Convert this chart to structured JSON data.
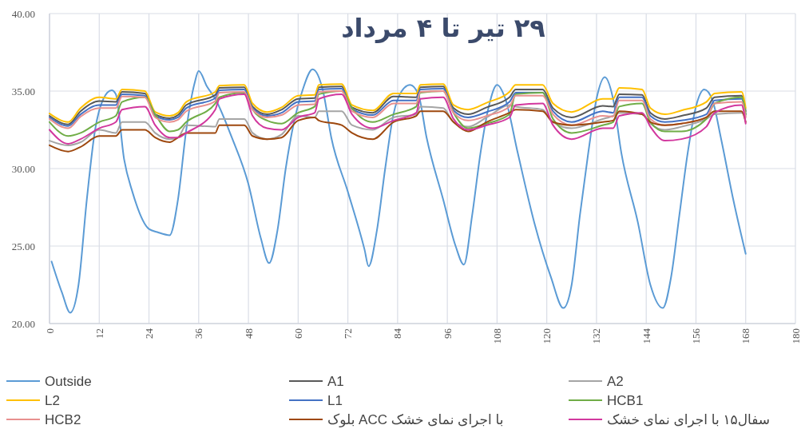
{
  "chart_data": {
    "type": "line",
    "title": "۲۹ تیر تا ۴ مرداد",
    "x": [
      0,
      4.5,
      7.5,
      12,
      16,
      17.5,
      23,
      25.5,
      29,
      31,
      33,
      40,
      41,
      47,
      49,
      52.5,
      56,
      60,
      64,
      65,
      70.5,
      73,
      78,
      83,
      88.5,
      89.5,
      95,
      97.5,
      101,
      105.5,
      111,
      112.5,
      119,
      121.5,
      126,
      133.5,
      136,
      137.5,
      143,
      145,
      148.5,
      152.5,
      158.5,
      160.5,
      167,
      168
    ],
    "xlim": [
      0,
      180
    ],
    "xticks": [
      0,
      12,
      24,
      36,
      48,
      60,
      72,
      84,
      96,
      108,
      120,
      132,
      144,
      156,
      168,
      180
    ],
    "ylim": [
      20,
      40
    ],
    "yticks": [
      {
        "value": 20,
        "label": "20.00"
      },
      {
        "value": 25,
        "label": "25.00"
      },
      {
        "value": 30,
        "label": "30.00"
      },
      {
        "value": 35,
        "label": "35.00"
      },
      {
        "value": 40,
        "label": "40.00"
      }
    ],
    "grid": true,
    "legend": "bottom",
    "line_style": "solid",
    "series": [
      {
        "name": "Outside",
        "color": "#5b9bd5",
        "x": [
          0.5,
          3,
          5,
          7,
          9,
          11,
          13,
          15,
          16,
          18,
          20,
          24,
          26,
          29,
          31,
          33,
          35,
          36,
          38,
          40,
          44,
          48,
          51,
          53,
          55,
          57,
          59,
          61,
          63.5,
          66,
          68,
          72,
          76,
          77,
          79,
          81,
          83,
          85,
          87,
          89,
          91,
          95,
          98,
          100,
          102,
          104,
          106,
          108,
          110,
          113,
          117,
          121,
          124,
          126,
          128,
          130,
          132,
          134,
          136,
          138,
          142,
          145,
          148,
          150,
          152,
          154,
          156,
          158,
          160,
          162,
          165,
          168
        ],
        "values": [
          24.0,
          22.0,
          20.7,
          22.5,
          28.0,
          32.5,
          34.5,
          35.05,
          34.8,
          30.6,
          28.5,
          26.1,
          25.9,
          25.7,
          28.0,
          32.5,
          35.5,
          36.3,
          35.3,
          34.5,
          32.0,
          29.0,
          25.5,
          23.9,
          26.0,
          30.0,
          33.0,
          35.0,
          36.4,
          35.0,
          32.0,
          28.5,
          24.8,
          23.7,
          26.0,
          30.0,
          33.5,
          35.0,
          35.4,
          34.8,
          32.0,
          28.0,
          25.0,
          23.8,
          27.0,
          31.0,
          34.0,
          35.4,
          34.5,
          31.0,
          26.5,
          23.0,
          21.0,
          22.5,
          27.0,
          31.0,
          34.5,
          35.9,
          34.5,
          31.0,
          26.5,
          22.5,
          21.0,
          23.0,
          27.0,
          31.0,
          34.0,
          35.1,
          34.4,
          32.0,
          28.0,
          24.5
        ]
      },
      {
        "name": "A1",
        "color": "#595959",
        "values": [
          33.4,
          32.85,
          33.7,
          34.35,
          34.3,
          34.95,
          34.85,
          33.5,
          33.25,
          33.45,
          34.1,
          34.75,
          35.2,
          35.25,
          34.0,
          33.5,
          33.8,
          34.5,
          34.55,
          35.25,
          35.3,
          33.95,
          33.6,
          34.65,
          34.6,
          35.25,
          35.3,
          33.9,
          33.5,
          33.95,
          34.6,
          35.1,
          35.1,
          33.9,
          33.3,
          34.05,
          34.0,
          34.8,
          34.75,
          33.6,
          33.2,
          33.4,
          33.9,
          34.6,
          34.7,
          33.7
        ]
      },
      {
        "name": "A2",
        "color": "#a5a5a5",
        "values": [
          31.8,
          31.5,
          31.7,
          32.5,
          32.3,
          33.0,
          33.0,
          32.3,
          31.9,
          32.0,
          32.8,
          32.7,
          33.2,
          33.2,
          32.3,
          31.9,
          32.2,
          33.4,
          33.3,
          33.7,
          33.7,
          32.8,
          32.5,
          33.3,
          33.5,
          34.0,
          33.9,
          33.0,
          32.7,
          33.3,
          34.1,
          34.0,
          33.8,
          33.0,
          32.6,
          33.2,
          33.4,
          33.6,
          33.5,
          32.9,
          32.5,
          32.7,
          33.2,
          33.5,
          33.6,
          33.4
        ]
      },
      {
        "name": "L2",
        "color": "#ffc000",
        "values": [
          33.55,
          33.0,
          33.9,
          34.6,
          34.5,
          35.1,
          35.0,
          33.65,
          33.4,
          33.6,
          34.3,
          34.95,
          35.35,
          35.4,
          34.2,
          33.65,
          33.95,
          34.7,
          34.75,
          35.4,
          35.45,
          34.1,
          33.75,
          34.85,
          34.85,
          35.4,
          35.45,
          34.1,
          33.8,
          34.25,
          34.95,
          35.4,
          35.4,
          34.2,
          33.65,
          34.5,
          34.5,
          35.2,
          35.1,
          33.9,
          33.5,
          33.75,
          34.3,
          34.85,
          34.95,
          33.9
        ]
      },
      {
        "name": "L1",
        "color": "#4472c4",
        "values": [
          33.3,
          32.75,
          33.5,
          34.1,
          34.1,
          34.8,
          34.7,
          33.4,
          33.15,
          33.3,
          33.9,
          34.55,
          35.05,
          35.1,
          33.9,
          33.4,
          33.6,
          34.3,
          34.35,
          35.1,
          35.15,
          33.85,
          33.45,
          34.4,
          34.4,
          35.1,
          35.15,
          33.75,
          33.3,
          33.65,
          34.3,
          34.9,
          34.9,
          33.7,
          33.0,
          33.7,
          33.6,
          34.6,
          34.6,
          33.4,
          33.0,
          33.1,
          33.5,
          34.4,
          34.5,
          33.5
        ]
      },
      {
        "name": "HCB1",
        "color": "#70ad47",
        "values": [
          33.0,
          32.1,
          32.3,
          33.0,
          33.4,
          34.3,
          34.6,
          33.5,
          32.4,
          32.5,
          33.0,
          34.2,
          34.6,
          34.9,
          33.8,
          33.1,
          32.9,
          33.6,
          34.0,
          34.8,
          35.0,
          33.9,
          33.0,
          33.5,
          34.0,
          34.9,
          35.0,
          33.6,
          32.6,
          32.9,
          33.5,
          34.8,
          34.9,
          33.2,
          32.3,
          32.8,
          33.0,
          34.0,
          34.2,
          33.0,
          32.4,
          32.4,
          33.2,
          34.2,
          34.6,
          33.5
        ]
      },
      {
        "name": "HCB2",
        "color": "#e8908f",
        "values": [
          33.2,
          32.6,
          33.35,
          33.9,
          33.9,
          34.65,
          34.6,
          33.3,
          33.0,
          33.15,
          33.7,
          34.35,
          34.9,
          34.95,
          33.8,
          33.3,
          33.45,
          34.1,
          34.15,
          34.95,
          35.0,
          33.7,
          33.3,
          34.2,
          34.2,
          34.95,
          35.0,
          33.6,
          33.1,
          33.4,
          34.0,
          34.7,
          34.7,
          33.5,
          32.8,
          33.4,
          33.35,
          34.4,
          34.4,
          33.2,
          32.8,
          32.9,
          33.3,
          34.2,
          34.3,
          33.3
        ]
      },
      {
        "name": "بلوک ACC با اجرای نمای خشک",
        "color": "#9e480e",
        "values": [
          31.5,
          31.1,
          31.4,
          32.1,
          32.1,
          32.5,
          32.5,
          32.0,
          31.7,
          32.0,
          32.3,
          32.3,
          32.8,
          32.8,
          32.1,
          31.9,
          32.0,
          33.1,
          33.3,
          33.1,
          32.8,
          32.3,
          31.9,
          33.0,
          33.4,
          33.7,
          33.7,
          33.0,
          32.4,
          33.0,
          33.6,
          33.8,
          33.7,
          33.0,
          32.8,
          33.0,
          33.1,
          33.7,
          33.5,
          33.0,
          32.8,
          32.9,
          33.3,
          33.7,
          33.7,
          33.0
        ]
      },
      {
        "name": "سفال۱۵ با اجرای نمای خشک",
        "color": "#d2389e",
        "values": [
          32.5,
          31.6,
          31.9,
          32.6,
          33.0,
          33.8,
          34.0,
          32.8,
          32.0,
          32.0,
          32.3,
          33.8,
          34.5,
          34.8,
          33.4,
          32.6,
          32.5,
          33.3,
          33.6,
          34.5,
          34.8,
          33.5,
          32.6,
          33.1,
          33.6,
          34.5,
          34.6,
          33.2,
          32.5,
          32.8,
          33.3,
          34.1,
          34.2,
          32.8,
          31.9,
          32.6,
          32.6,
          33.4,
          33.6,
          32.7,
          31.8,
          31.9,
          32.7,
          33.6,
          34.1,
          32.9
        ]
      }
    ]
  }
}
